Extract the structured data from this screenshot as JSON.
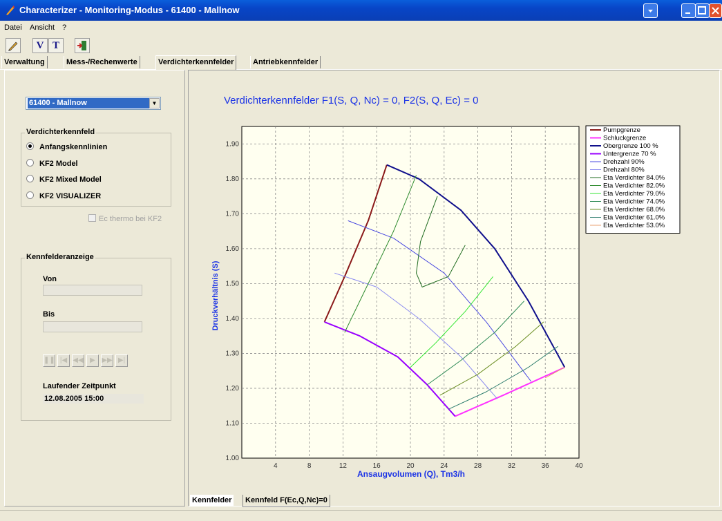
{
  "window": {
    "title": "Characterizer - Monitoring-Modus  -  61400  -  Mallnow"
  },
  "menu": [
    "Datei",
    "Ansicht",
    "?"
  ],
  "toolbar": {
    "v_label": "V",
    "t_label": "T"
  },
  "tabs": [
    "Verwaltung",
    "Mess-/Rechenwerte",
    "Verdichterkennfelder",
    "Antriebkennfelder"
  ],
  "station_select": {
    "value": "61400  -  Mallnow"
  },
  "verdichterkennfeld": {
    "title": "Verdichterkennfeld",
    "options": [
      "Anfangskennlinien",
      "KF2 Model",
      "KF2 Mixed Model",
      "KF2 VISUALIZER"
    ],
    "selected": 0
  },
  "ec_checkbox": {
    "label": "Ec thermo bei KF2"
  },
  "kennfelderanzeige": {
    "title": "Kennfelderanzeige",
    "von_label": "Von",
    "bis_label": "Bis",
    "zeitpunkt_label": "Laufender Zeitpunkt",
    "zeitpunkt_value": "12.08.2005 15:00"
  },
  "bottom_tabs": [
    "Kennfelder",
    "Kennfeld F(Ec,Q,Nc)=0"
  ],
  "chart_data": {
    "type": "line",
    "title": "Verdichterkennfelder  F1(S, Q, Nc) = 0,  F2(S, Q, Ec) = 0",
    "xlabel": "Ansaugvolumen (Q), Tm3/h",
    "ylabel": "Druckverhältnis (S)",
    "xlim": [
      0,
      40
    ],
    "ylim": [
      1.0,
      1.95
    ],
    "xticks": [
      "4",
      "8",
      "12",
      "16",
      "20",
      "24",
      "28",
      "32",
      "36",
      "40"
    ],
    "yticks": [
      "1.00",
      "1.10",
      "1.20",
      "1.30",
      "1.40",
      "1.50",
      "1.60",
      "1.70",
      "1.80",
      "1.90"
    ],
    "grid": true,
    "legend_position": "right",
    "series": [
      {
        "name": "Pumpgrenze",
        "color": "#8B1A1A",
        "width": 2,
        "x": [
          9.8,
          12.2,
          15.0,
          17.2
        ],
        "y": [
          1.39,
          1.52,
          1.68,
          1.84
        ]
      },
      {
        "name": "Schluckgrenze",
        "color": "#FF33FF",
        "width": 2,
        "x": [
          25.3,
          31.0,
          38.3
        ],
        "y": [
          1.12,
          1.18,
          1.26
        ]
      },
      {
        "name": "Obergrenze 100 %",
        "color": "#10108C",
        "width": 2,
        "x": [
          17.2,
          21.0,
          26.0,
          30.0,
          34.0,
          38.3
        ],
        "y": [
          1.84,
          1.8,
          1.71,
          1.6,
          1.45,
          1.26
        ]
      },
      {
        "name": "Untergrenze 70 %",
        "color": "#9900FF",
        "width": 2,
        "x": [
          9.8,
          14.0,
          18.5,
          22.0,
          25.3
        ],
        "y": [
          1.39,
          1.35,
          1.29,
          1.21,
          1.12
        ]
      },
      {
        "name": "Drehzahl 90%",
        "color": "#4A4AE0",
        "width": 1,
        "x": [
          12.6,
          18.0,
          24.0,
          29.0,
          34.3
        ],
        "y": [
          1.68,
          1.63,
          1.53,
          1.39,
          1.22
        ]
      },
      {
        "name": "Drehzahl 80%",
        "color": "#8B8BF0",
        "width": 1,
        "x": [
          11.0,
          16.0,
          21.0,
          26.0,
          30.3
        ],
        "y": [
          1.53,
          1.49,
          1.4,
          1.29,
          1.17
        ]
      },
      {
        "name": "Eta Verdichter 84.0%",
        "color": "#1F6B1F",
        "width": 1,
        "x": [
          23.2,
          21.2,
          20.7,
          21.4,
          24.5,
          26.5
        ],
        "y": [
          1.75,
          1.62,
          1.53,
          1.49,
          1.52,
          1.61
        ]
      },
      {
        "name": "Eta Verdichter 82.0%",
        "color": "#2E8B2E",
        "width": 1,
        "x": [
          12.2,
          15.0,
          18.0,
          20.7
        ],
        "y": [
          1.36,
          1.5,
          1.65,
          1.81
        ]
      },
      {
        "name": "Eta Verdichter 79.0%",
        "color": "#33E633",
        "width": 1,
        "x": [
          20.0,
          23.0,
          26.5,
          29.8
        ],
        "y": [
          1.26,
          1.33,
          1.42,
          1.52
        ]
      },
      {
        "name": "Eta Verdichter 74.0%",
        "color": "#2E8B57",
        "width": 1,
        "x": [
          22.0,
          26.0,
          30.0,
          33.5
        ],
        "y": [
          1.21,
          1.28,
          1.36,
          1.45
        ]
      },
      {
        "name": "Eta Verdichter 68.0%",
        "color": "#6B8E23",
        "width": 1,
        "x": [
          23.5,
          28.0,
          32.5,
          35.8
        ],
        "y": [
          1.18,
          1.24,
          1.32,
          1.39
        ]
      },
      {
        "name": "Eta Verdichter 61.0%",
        "color": "#2E7D6E",
        "width": 1,
        "x": [
          24.5,
          29.0,
          34.0,
          37.5
        ],
        "y": [
          1.14,
          1.19,
          1.26,
          1.32
        ]
      },
      {
        "name": "Eta Verdichter 53.0%",
        "color": "#E8A070",
        "width": 1,
        "x": [
          36.0,
          38.3
        ],
        "y": [
          1.23,
          1.26
        ]
      }
    ]
  }
}
